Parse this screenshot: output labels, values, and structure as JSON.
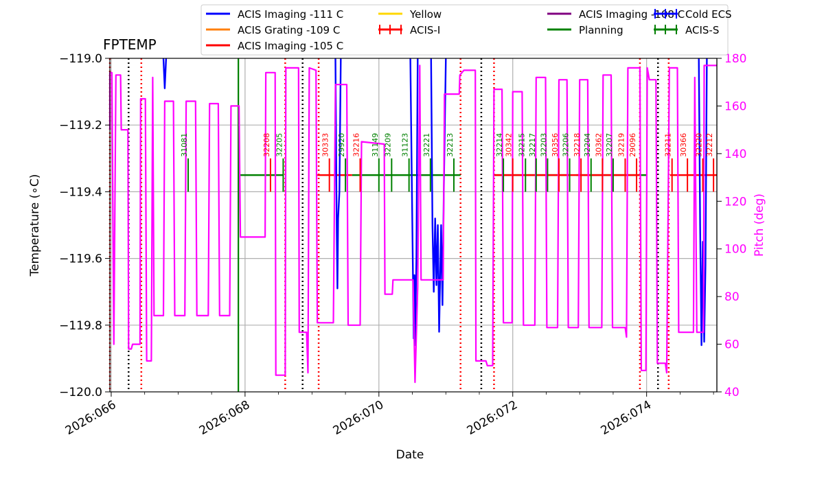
{
  "chart_data": {
    "type": "line",
    "title": "FPTEMP",
    "xlabel": "Date",
    "ylabel": "Temperature ($^\\circ$C)",
    "ylabel_display": "Temperature (∘C)",
    "y2label": "Pitch (deg)",
    "xlim": [
      65.98,
      75.05
    ],
    "ylim": [
      -120.0,
      -119.0
    ],
    "y2lim": [
      40,
      180
    ],
    "x_ticks": [
      66,
      68,
      70,
      72,
      74
    ],
    "x_tick_labels": [
      "2026:066",
      "2026:068",
      "2026:070",
      "2026:072",
      "2026:074"
    ],
    "y_ticks": [
      -120.0,
      -119.8,
      -119.6,
      -119.4,
      -119.2,
      -119.0
    ],
    "y_tick_labels": [
      "−120.0",
      "−119.8",
      "−119.6",
      "−119.4",
      "−119.2",
      "−119.0"
    ],
    "y2_ticks": [
      40,
      60,
      80,
      100,
      120,
      140,
      160,
      180
    ],
    "y2_tick_labels": [
      "40",
      "60",
      "80",
      "100",
      "120",
      "140",
      "160",
      "180"
    ],
    "grid": true,
    "legend": [
      {
        "label": "ACIS Imaging -111 C",
        "color": "#0000ff",
        "kind": "line"
      },
      {
        "label": "ACIS Grating -109 C",
        "color": "#ff7f0e",
        "kind": "line"
      },
      {
        "label": "Yellow",
        "color": "#ffd700",
        "kind": "line"
      },
      {
        "label": "ACIS-I",
        "color": "#ff0000",
        "kind": "errorbar"
      },
      {
        "label": "ACIS Imaging -108 C",
        "color": "#800080",
        "kind": "line"
      },
      {
        "label": "Planning",
        "color": "#008000",
        "kind": "line"
      },
      {
        "label": "Cold ECS",
        "color": "#0000ff",
        "kind": "errorbar"
      },
      {
        "label": "ACIS-S",
        "color": "#008000",
        "kind": "errorbar"
      },
      {
        "label": "ACIS Imaging -105 C",
        "color": "#ff0000",
        "kind": "line"
      }
    ],
    "colors": {
      "pitch": "#ff00ff",
      "temperature": "#0000ff",
      "acis_i": "#ff0000",
      "acis_s": "#008000",
      "red_marker": "#ff0000",
      "black_marker": "#000000",
      "grid": "#b0b0b0"
    },
    "pitch_series": [
      [
        65.95,
        150
      ],
      [
        65.97,
        151
      ],
      [
        65.98,
        174
      ],
      [
        66.01,
        174
      ],
      [
        66.04,
        60
      ],
      [
        66.07,
        173
      ],
      [
        66.14,
        173
      ],
      [
        66.15,
        150
      ],
      [
        66.25,
        150
      ],
      [
        66.26,
        58
      ],
      [
        66.3,
        58
      ],
      [
        66.32,
        60
      ],
      [
        66.43,
        60
      ],
      [
        66.44,
        163
      ],
      [
        66.51,
        163
      ],
      [
        66.53,
        53
      ],
      [
        66.6,
        53
      ],
      [
        66.62,
        172
      ],
      [
        66.64,
        72
      ],
      [
        66.78,
        72
      ],
      [
        66.8,
        162
      ],
      [
        66.93,
        162
      ],
      [
        66.95,
        72
      ],
      [
        67.1,
        72
      ],
      [
        67.12,
        162
      ],
      [
        67.26,
        162
      ],
      [
        67.28,
        72
      ],
      [
        67.45,
        72
      ],
      [
        67.47,
        161
      ],
      [
        67.6,
        161
      ],
      [
        67.62,
        72
      ],
      [
        67.77,
        72
      ],
      [
        67.79,
        160
      ],
      [
        67.91,
        160
      ],
      [
        67.93,
        105
      ],
      [
        68.3,
        105
      ],
      [
        68.31,
        174
      ],
      [
        68.45,
        174
      ],
      [
        68.46,
        47
      ],
      [
        68.6,
        47
      ],
      [
        68.61,
        176
      ],
      [
        68.8,
        176
      ],
      [
        68.81,
        65
      ],
      [
        68.92,
        65
      ],
      [
        68.94,
        48
      ],
      [
        68.96,
        176
      ],
      [
        69.06,
        175
      ],
      [
        69.08,
        69
      ],
      [
        69.32,
        69
      ],
      [
        69.35,
        169
      ],
      [
        69.52,
        169
      ],
      [
        69.54,
        68
      ],
      [
        69.72,
        68
      ],
      [
        69.74,
        145
      ],
      [
        70.08,
        144
      ],
      [
        70.09,
        81
      ],
      [
        70.2,
        81
      ],
      [
        70.21,
        87
      ],
      [
        70.51,
        87
      ],
      [
        70.54,
        44
      ],
      [
        70.58,
        84
      ],
      [
        70.61,
        177
      ],
      [
        70.63,
        87
      ],
      [
        70.96,
        87
      ],
      [
        70.98,
        165
      ],
      [
        71.2,
        165
      ],
      [
        71.21,
        173
      ],
      [
        71.27,
        175
      ],
      [
        71.44,
        175
      ],
      [
        71.45,
        53
      ],
      [
        71.6,
        53
      ],
      [
        71.62,
        51
      ],
      [
        71.7,
        51
      ],
      [
        71.72,
        167
      ],
      [
        71.84,
        167
      ],
      [
        71.86,
        69
      ],
      [
        71.99,
        69
      ],
      [
        72.0,
        166
      ],
      [
        72.14,
        166
      ],
      [
        72.16,
        68
      ],
      [
        72.33,
        68
      ],
      [
        72.35,
        172
      ],
      [
        72.49,
        172
      ],
      [
        72.51,
        67
      ],
      [
        72.67,
        67
      ],
      [
        72.69,
        171
      ],
      [
        72.81,
        171
      ],
      [
        72.83,
        67
      ],
      [
        72.98,
        67
      ],
      [
        73.0,
        171
      ],
      [
        73.12,
        171
      ],
      [
        73.14,
        67
      ],
      [
        73.33,
        67
      ],
      [
        73.35,
        173
      ],
      [
        73.47,
        173
      ],
      [
        73.49,
        67
      ],
      [
        73.68,
        67
      ],
      [
        73.7,
        63
      ],
      [
        73.72,
        176
      ],
      [
        73.9,
        176
      ],
      [
        73.92,
        49
      ],
      [
        73.99,
        49
      ],
      [
        74.01,
        176
      ],
      [
        74.04,
        171
      ],
      [
        74.14,
        171
      ],
      [
        74.16,
        52
      ],
      [
        74.28,
        52
      ],
      [
        74.3,
        48
      ],
      [
        74.34,
        176
      ],
      [
        74.46,
        176
      ],
      [
        74.48,
        65
      ],
      [
        74.7,
        65
      ],
      [
        74.72,
        172
      ],
      [
        74.75,
        65
      ],
      [
        74.85,
        65
      ],
      [
        74.86,
        177
      ],
      [
        75.05,
        177
      ]
    ],
    "temperature_series": [
      [
        [
          66.78,
          -119.0
        ],
        [
          66.8,
          -119.09
        ],
        [
          66.82,
          -119.0
        ]
      ],
      [
        [
          69.35,
          -119.0
        ],
        [
          69.37,
          -119.52
        ],
        [
          69.38,
          -119.69
        ],
        [
          69.39,
          -119.48
        ],
        [
          69.41,
          -119.4
        ],
        [
          69.43,
          -119.0
        ]
      ],
      [
        [
          70.47,
          -119.0
        ],
        [
          70.5,
          -119.5
        ],
        [
          70.52,
          -119.84
        ],
        [
          70.53,
          -119.65
        ],
        [
          70.54,
          -119.86
        ],
        [
          70.56,
          -119.6
        ],
        [
          70.58,
          -119.0
        ]
      ],
      [
        [
          70.78,
          -119.0
        ],
        [
          70.8,
          -119.5
        ],
        [
          70.82,
          -119.7
        ],
        [
          70.84,
          -119.48
        ],
        [
          70.86,
          -119.68
        ],
        [
          70.88,
          -119.5
        ],
        [
          70.9,
          -119.82
        ],
        [
          70.93,
          -119.5
        ],
        [
          70.95,
          -119.74
        ],
        [
          70.97,
          -119.4
        ],
        [
          71.0,
          -119.0
        ]
      ],
      [
        [
          74.78,
          -119.0
        ],
        [
          74.8,
          -119.5
        ],
        [
          74.82,
          -119.86
        ],
        [
          74.84,
          -119.55
        ],
        [
          74.86,
          -119.85
        ],
        [
          74.88,
          -119.62
        ],
        [
          74.9,
          -119.0
        ]
      ]
    ],
    "acis_s_segments": [
      [
        67.92,
        68.57
      ],
      [
        69.6,
        71.22
      ],
      [
        71.72,
        72.85
      ],
      [
        72.95,
        74.0
      ]
    ],
    "acis_i_segments": [
      [
        69.08,
        69.6
      ],
      [
        71.72,
        73.9
      ],
      [
        74.35,
        75.05
      ]
    ],
    "obsids": [
      {
        "x": 67.15,
        "label": "31081",
        "instrument": "ACIS-S"
      },
      {
        "x": 68.38,
        "label": "32208",
        "instrument": "ACIS-I"
      },
      {
        "x": 68.57,
        "label": "32205",
        "instrument": "ACIS-S"
      },
      {
        "x": 69.26,
        "label": "30333",
        "instrument": "ACIS-I"
      },
      {
        "x": 69.5,
        "label": "29920",
        "instrument": "ACIS-S"
      },
      {
        "x": 69.72,
        "label": "32216",
        "instrument": "ACIS-I"
      },
      {
        "x": 70.0,
        "label": "31149",
        "instrument": "ACIS-S"
      },
      {
        "x": 70.19,
        "label": "32209",
        "instrument": "ACIS-S"
      },
      {
        "x": 70.45,
        "label": "31123",
        "instrument": "ACIS-S"
      },
      {
        "x": 70.77,
        "label": "32221",
        "instrument": "ACIS-S"
      },
      {
        "x": 71.12,
        "label": "32213",
        "instrument": "ACIS-S"
      },
      {
        "x": 71.86,
        "label": "32214",
        "instrument": "ACIS-S"
      },
      {
        "x": 72.0,
        "label": "30342",
        "instrument": "ACIS-I"
      },
      {
        "x": 72.19,
        "label": "32215",
        "instrument": "ACIS-S"
      },
      {
        "x": 72.35,
        "label": "32217",
        "instrument": "ACIS-S"
      },
      {
        "x": 72.52,
        "label": "32203",
        "instrument": "ACIS-S"
      },
      {
        "x": 72.69,
        "label": "30356",
        "instrument": "ACIS-I"
      },
      {
        "x": 72.85,
        "label": "32206",
        "instrument": "ACIS-S"
      },
      {
        "x": 73.02,
        "label": "32218",
        "instrument": "ACIS-I"
      },
      {
        "x": 73.17,
        "label": "32204",
        "instrument": "ACIS-S"
      },
      {
        "x": 73.34,
        "label": "30362",
        "instrument": "ACIS-I"
      },
      {
        "x": 73.5,
        "label": "32207",
        "instrument": "ACIS-S"
      },
      {
        "x": 73.68,
        "label": "32219",
        "instrument": "ACIS-I"
      },
      {
        "x": 73.85,
        "label": "29096",
        "instrument": "ACIS-I"
      },
      {
        "x": 74.38,
        "label": "32211",
        "instrument": "ACIS-I"
      },
      {
        "x": 74.61,
        "label": "30366",
        "instrument": "ACIS-I"
      },
      {
        "x": 74.84,
        "label": "32220",
        "instrument": "ACIS-I"
      },
      {
        "x": 75.0,
        "label": "32212",
        "instrument": "ACIS-I"
      }
    ],
    "red_dotted_lines": [
      65.98,
      66.45,
      68.6,
      69.1,
      71.22,
      71.72,
      73.9,
      74.33
    ],
    "black_dotted_lines": [
      66.26,
      68.86,
      71.53,
      74.17
    ],
    "planning_line_x": 67.9
  }
}
